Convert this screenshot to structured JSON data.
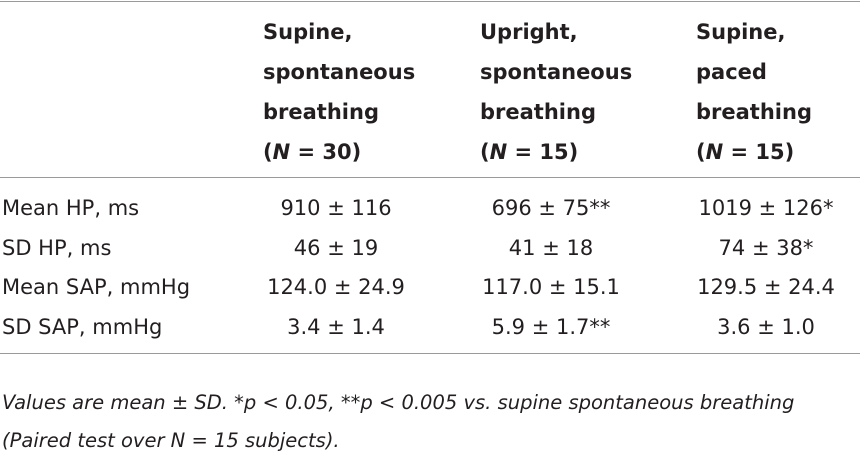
{
  "table": {
    "columns": [
      {
        "lines": [
          "Supine,",
          "spontaneous",
          "breathing"
        ],
        "n": {
          "open": "(",
          "symbol": "N",
          "rest": " = 30)"
        }
      },
      {
        "lines": [
          "Upright,",
          "spontaneous",
          "breathing"
        ],
        "n": {
          "open": "(",
          "symbol": "N",
          "rest": " = 15)"
        }
      },
      {
        "lines": [
          "Supine,",
          "paced",
          "breathing"
        ],
        "n": {
          "open": "(",
          "symbol": "N",
          "rest": " = 15)"
        }
      }
    ],
    "rows": [
      [
        "Mean HP, ms",
        "910 ± 116",
        "696 ± 75**",
        "1019 ± 126*"
      ],
      [
        "SD HP, ms",
        "46 ± 19",
        "41 ± 18",
        "74 ± 38*"
      ],
      [
        "Mean SAP, mmHg",
        "124.0 ± 24.9",
        "117.0 ± 15.1",
        "129.5 ± 24.4"
      ],
      [
        "SD SAP, mmHg",
        "3.4 ± 1.4",
        "5.9 ± 1.7**",
        "3.6 ± 1.0"
      ]
    ],
    "footnote": "Values are mean ± SD. *p < 0.05, **p < 0.005 vs. supine spontaneous breathing (Paired test over N = 15 subjects)."
  }
}
